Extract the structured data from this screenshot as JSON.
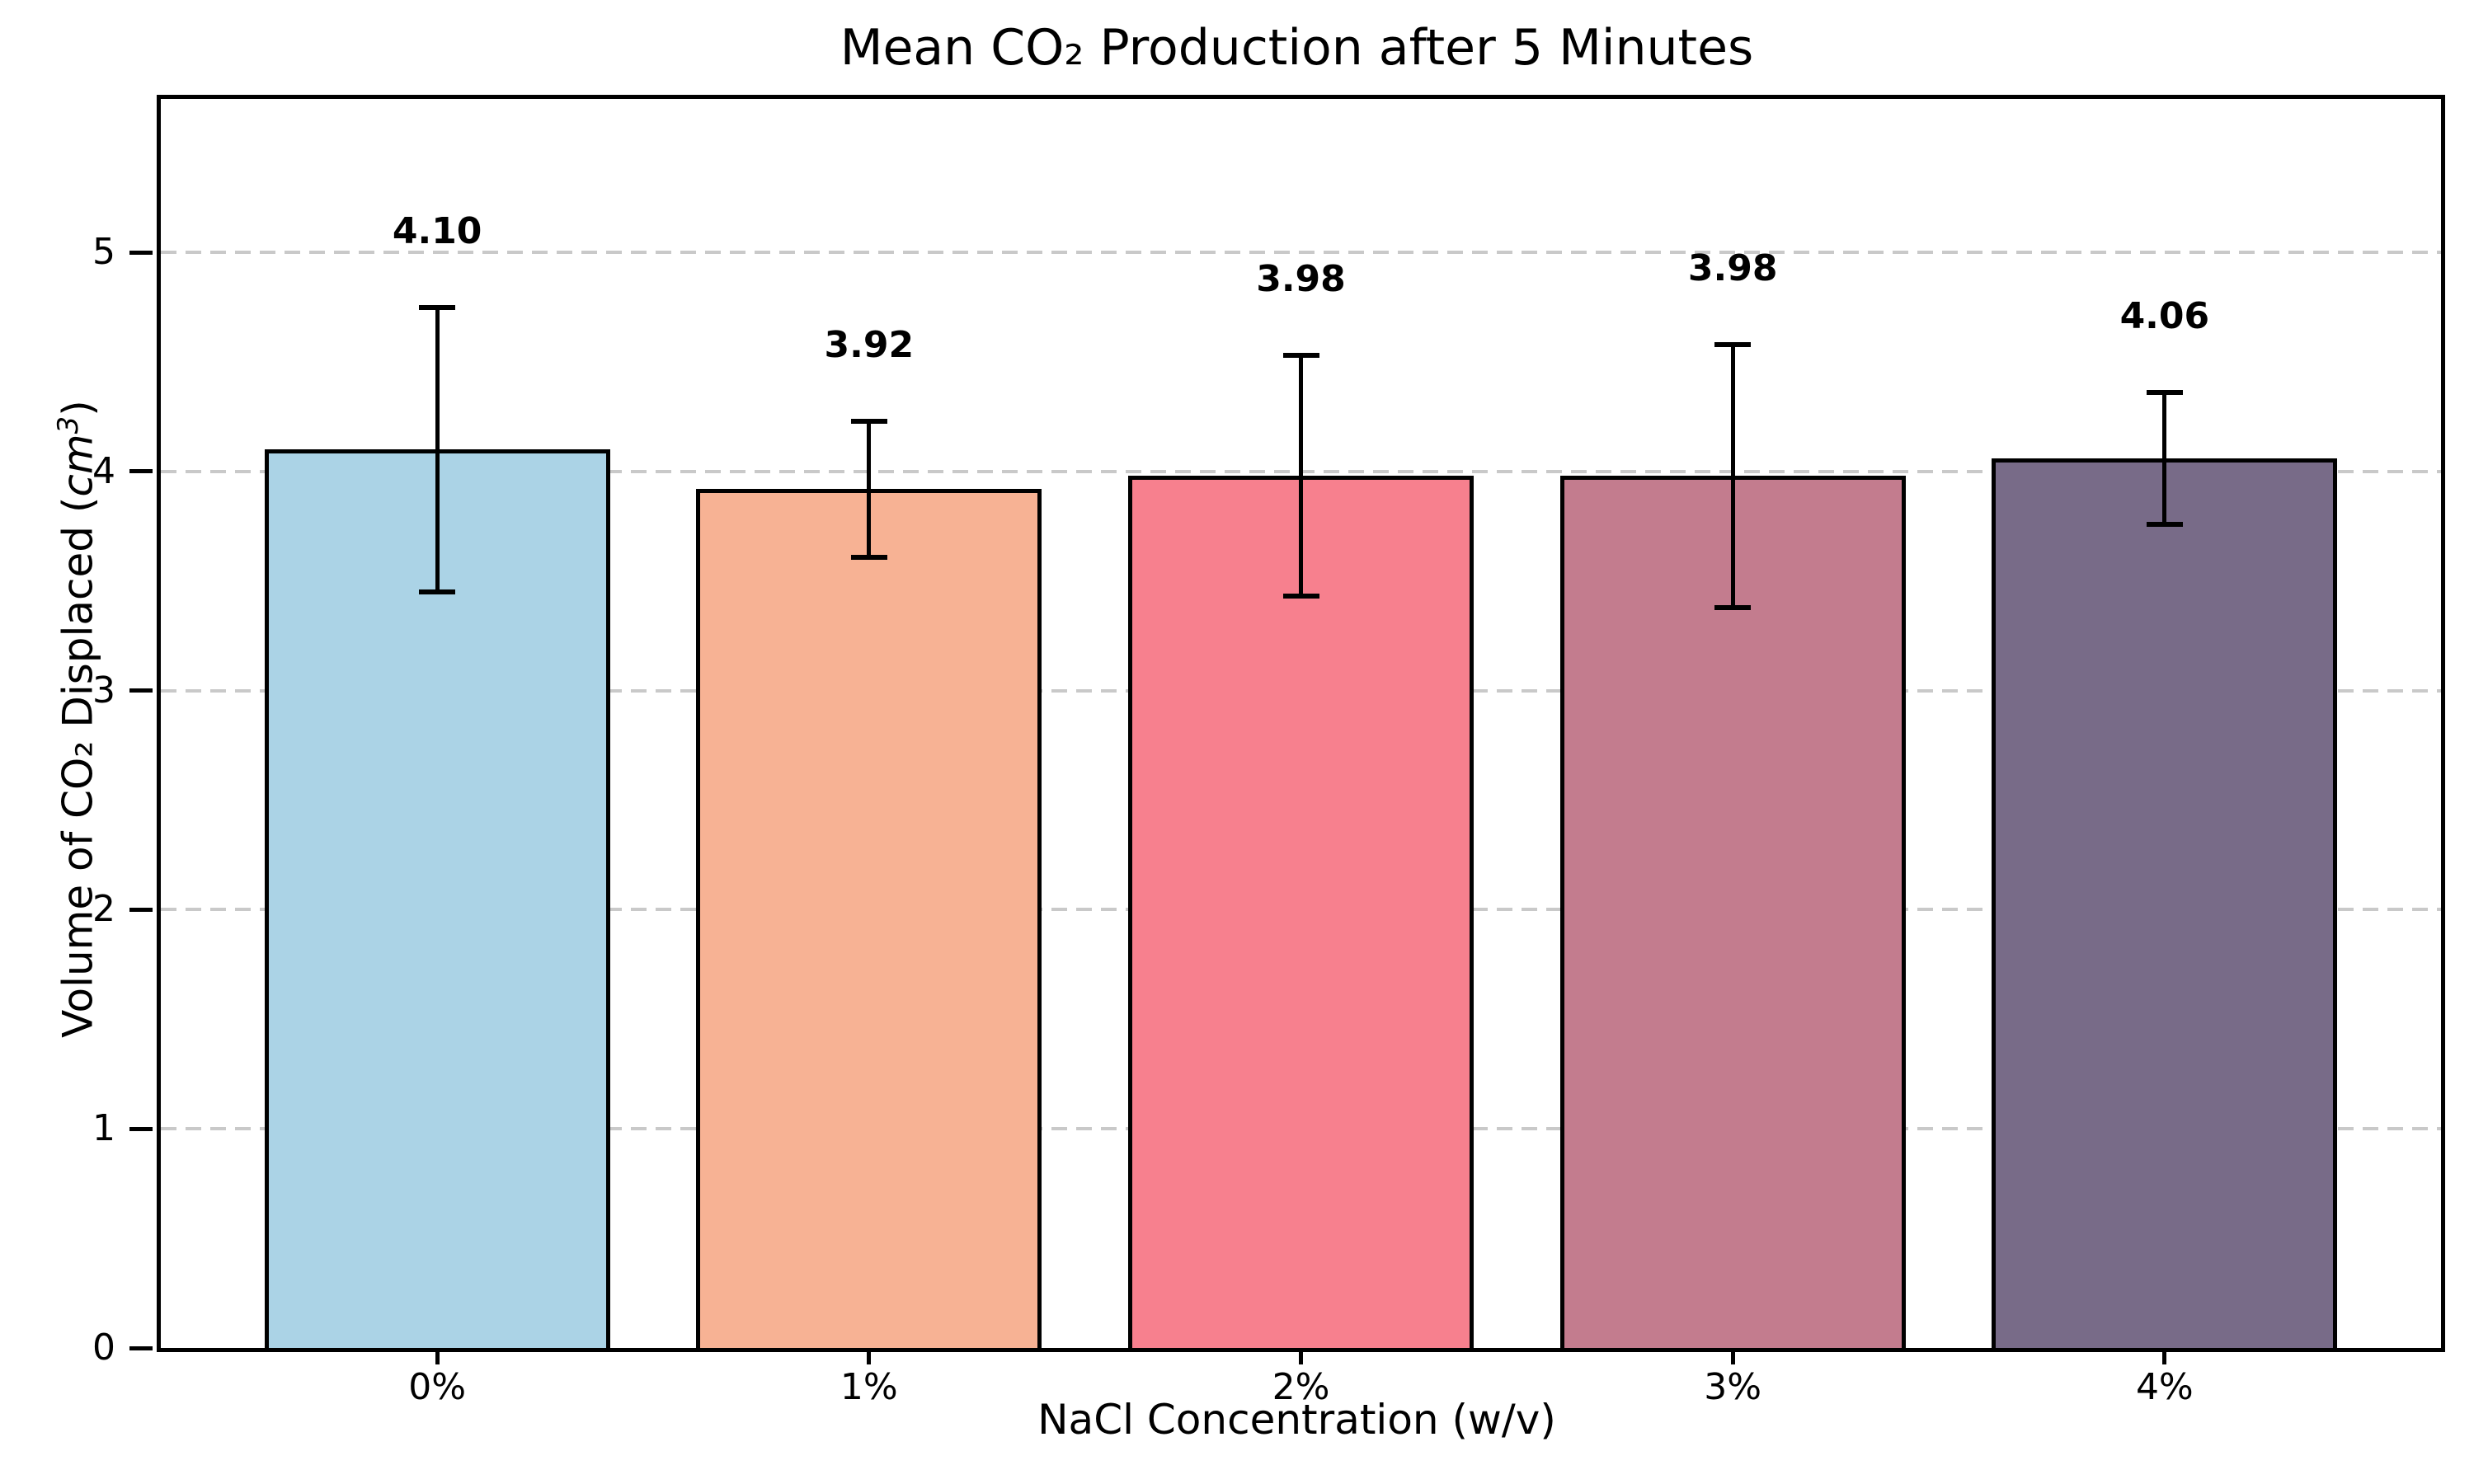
{
  "chart_data": {
    "type": "bar",
    "title": "Mean CO₂ Production after 5 Minutes",
    "xlabel": "NaCl Concentration (w/v)",
    "ylabel": "Volume of CO₂ Displaced (cm³)",
    "ylabel_parts": {
      "prefix": "Volume of CO₂ Displaced (",
      "unit": "cm",
      "exponent": "3",
      "suffix": ")"
    },
    "categories": [
      "0%",
      "1%",
      "2%",
      "3%",
      "4%"
    ],
    "values": [
      4.1,
      3.92,
      3.98,
      3.98,
      4.06
    ],
    "errors": [
      0.65,
      0.31,
      0.55,
      0.6,
      0.3
    ],
    "bar_labels": [
      "4.10",
      "3.92",
      "3.98",
      "3.98",
      "4.06"
    ],
    "bar_colors": [
      "#ABD3E6",
      "#F7B294",
      "#F7808E",
      "#C37C8E",
      "#786B88"
    ],
    "edge_color": "#000000",
    "error_color": "#000000",
    "grid_color": "#C9C9C9",
    "background_color": "#FFFFFF",
    "yticks": [
      0,
      1,
      2,
      3,
      4,
      5
    ],
    "ytick_labels": [
      "0",
      "1",
      "2",
      "3",
      "4",
      "5"
    ],
    "ylim": [
      0,
      5.7
    ],
    "grid": "horizontal-dashed",
    "legend": "none"
  }
}
